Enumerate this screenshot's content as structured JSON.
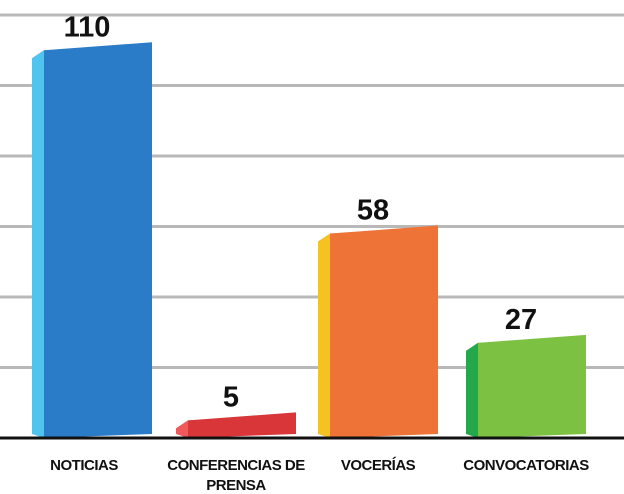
{
  "chart_data": {
    "type": "bar3d",
    "categories": [
      "NOTICIAS",
      "CONFERENCIAS DE PRENSA",
      "VOCERÍAS",
      "CONVOCATORIAS"
    ],
    "values": [
      110,
      5,
      58,
      27
    ],
    "colors": [
      "#2a7cc8",
      "#d9363a",
      "#ee7336",
      "#7cc142"
    ],
    "side_colors": [
      "#4fc4ee",
      "#f05a5a",
      "#f4c322",
      "#22a84a"
    ],
    "ylim": [
      0,
      120
    ],
    "yticks": [
      0,
      20,
      40,
      60,
      80,
      100,
      120
    ],
    "grid": true
  }
}
